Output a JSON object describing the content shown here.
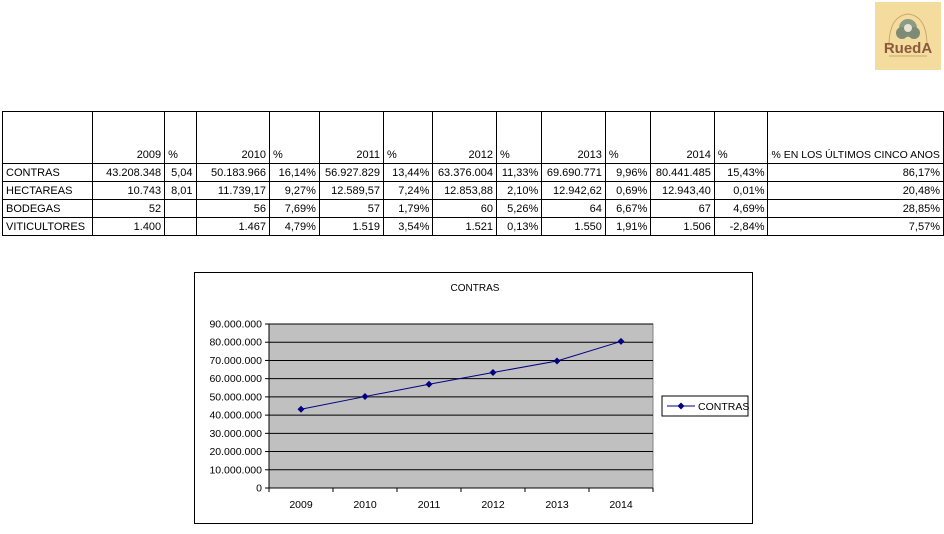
{
  "logo": {
    "text": "RuedA",
    "background": "#f4dc9f"
  },
  "table": {
    "header": [
      "",
      "2009",
      "%",
      "2010",
      "%",
      "2011",
      "%",
      "2012",
      "%",
      "2013",
      "%",
      "2014",
      "%",
      "% EN LOS ÚLTIMOS CINCO ANOS"
    ],
    "rows": [
      {
        "label": "CONTRAS",
        "cells": [
          "43.208.348",
          "5,04",
          "50.183.966",
          "16,14%",
          "56.927.829",
          "13,44%",
          "63.376.004",
          "11,33%",
          "69.690.771",
          "9,96%",
          "80.441.485",
          "15,43%",
          "86,17%"
        ]
      },
      {
        "label": "HECTAREAS",
        "cells": [
          "10.743",
          "8,01",
          "11.739,17",
          "9,27%",
          "12.589,57",
          "7,24%",
          "12.853,88",
          "2,10%",
          "12.942,62",
          "0,69%",
          "12.943,40",
          "0,01%",
          "20,48%"
        ]
      },
      {
        "label": "BODEGAS",
        "cells": [
          "52",
          "",
          "56",
          "7,69%",
          "57",
          "1,79%",
          "60",
          "5,26%",
          "64",
          "6,67%",
          "67",
          "4,69%",
          "28,85%"
        ]
      },
      {
        "label": "VITICULTORES",
        "cells": [
          "1.400",
          "",
          "1.467",
          "4,79%",
          "1.519",
          "3,54%",
          "1.521",
          "0,13%",
          "1.550",
          "1,91%",
          "1.506",
          "-2,84%",
          "7,57%"
        ]
      }
    ]
  },
  "chart_data": {
    "type": "line",
    "title": "CONTRAS",
    "xlabel": "",
    "ylabel": "",
    "categories": [
      "2009",
      "2010",
      "2011",
      "2012",
      "2013",
      "2014"
    ],
    "series": [
      {
        "name": "CONTRAS",
        "values": [
          43208348,
          50183966,
          56927829,
          63376004,
          69690771,
          80441485
        ],
        "color": "#000080"
      }
    ],
    "ylim": [
      0,
      90000000
    ],
    "yticks": [
      0,
      10000000,
      20000000,
      30000000,
      40000000,
      50000000,
      60000000,
      70000000,
      80000000,
      90000000
    ],
    "ytick_labels": [
      "0",
      "10.000.000",
      "20.000.000",
      "30.000.000",
      "40.000.000",
      "50.000.000",
      "60.000.000",
      "70.000.000",
      "80.000.000",
      "90.000.000"
    ],
    "grid": true,
    "plot_background": "#c0c0c0",
    "legend": "right"
  }
}
